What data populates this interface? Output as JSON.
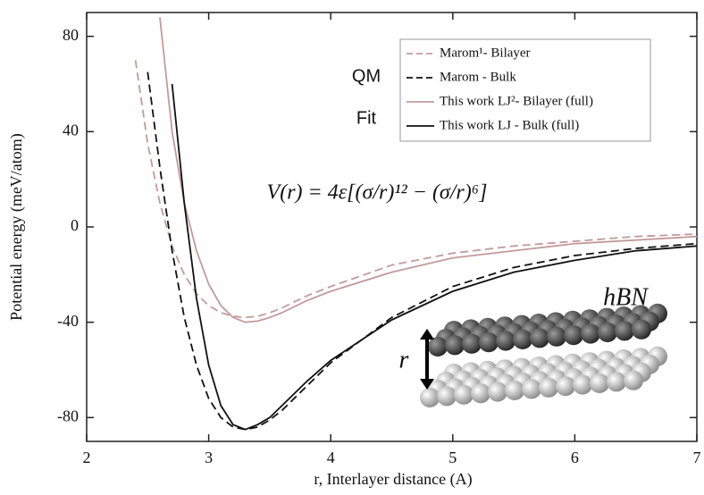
{
  "chart_data": {
    "type": "line",
    "x_label": "r, Interlayer distance (A)",
    "y_label": "Potential energy (meV/atom)",
    "x": [
      2.4,
      2.5,
      2.6,
      2.7,
      2.8,
      2.9,
      3.0,
      3.1,
      3.2,
      3.3,
      3.4,
      3.5,
      3.6,
      3.8,
      4.0,
      4.5,
      5.0,
      5.5,
      6.0,
      6.5,
      7.0
    ],
    "series": [
      {
        "name": "Marom¹- Bilayer",
        "color": "#c49a9a",
        "dashed": true,
        "values": [
          70,
          35,
          10,
          -8,
          -20,
          -28,
          -33,
          -36,
          -37.5,
          -38,
          -37.5,
          -36,
          -34,
          -29,
          -25,
          -16,
          -11,
          -8,
          -6,
          -4,
          -3
        ]
      },
      {
        "name": "Marom - Bulk",
        "color": "#111111",
        "dashed": true,
        "values": [
          null,
          65,
          25,
          -10,
          -38,
          -58,
          -72,
          -80,
          -84,
          -85,
          -84,
          -81,
          -77,
          -67,
          -57,
          -38,
          -25,
          -17,
          -12,
          -9,
          -7
        ]
      },
      {
        "name": "This work LJ²- Bilayer (full)",
        "color": "#c49a9a",
        "dashed": false,
        "values": [
          null,
          null,
          88,
          40,
          10,
          -10,
          -24,
          -33,
          -38,
          -40,
          -39.5,
          -38,
          -36,
          -31,
          -27,
          -19,
          -13,
          -10,
          -7,
          -5.5,
          -4
        ]
      },
      {
        "name": "This work LJ - Bulk (full)",
        "color": "#111111",
        "dashed": false,
        "values": [
          null,
          null,
          null,
          60,
          10,
          -30,
          -58,
          -75,
          -83,
          -85,
          -83,
          -80,
          -75,
          -65,
          -56,
          -39,
          -27,
          -19,
          -14,
          -10,
          -8
        ]
      }
    ],
    "xlim": [
      2,
      7
    ],
    "xticks": [
      2,
      3,
      4,
      5,
      6,
      7
    ],
    "ylim": [
      -90,
      90
    ],
    "yticks": [
      -80,
      -40,
      0,
      40,
      80
    ],
    "annotations": {
      "qm": "QM",
      "fit": "Fit",
      "equation": "V(r) = 4ε[(σ/r)¹² − (σ/r)⁶]",
      "material": "hBN",
      "distance": "r"
    }
  }
}
